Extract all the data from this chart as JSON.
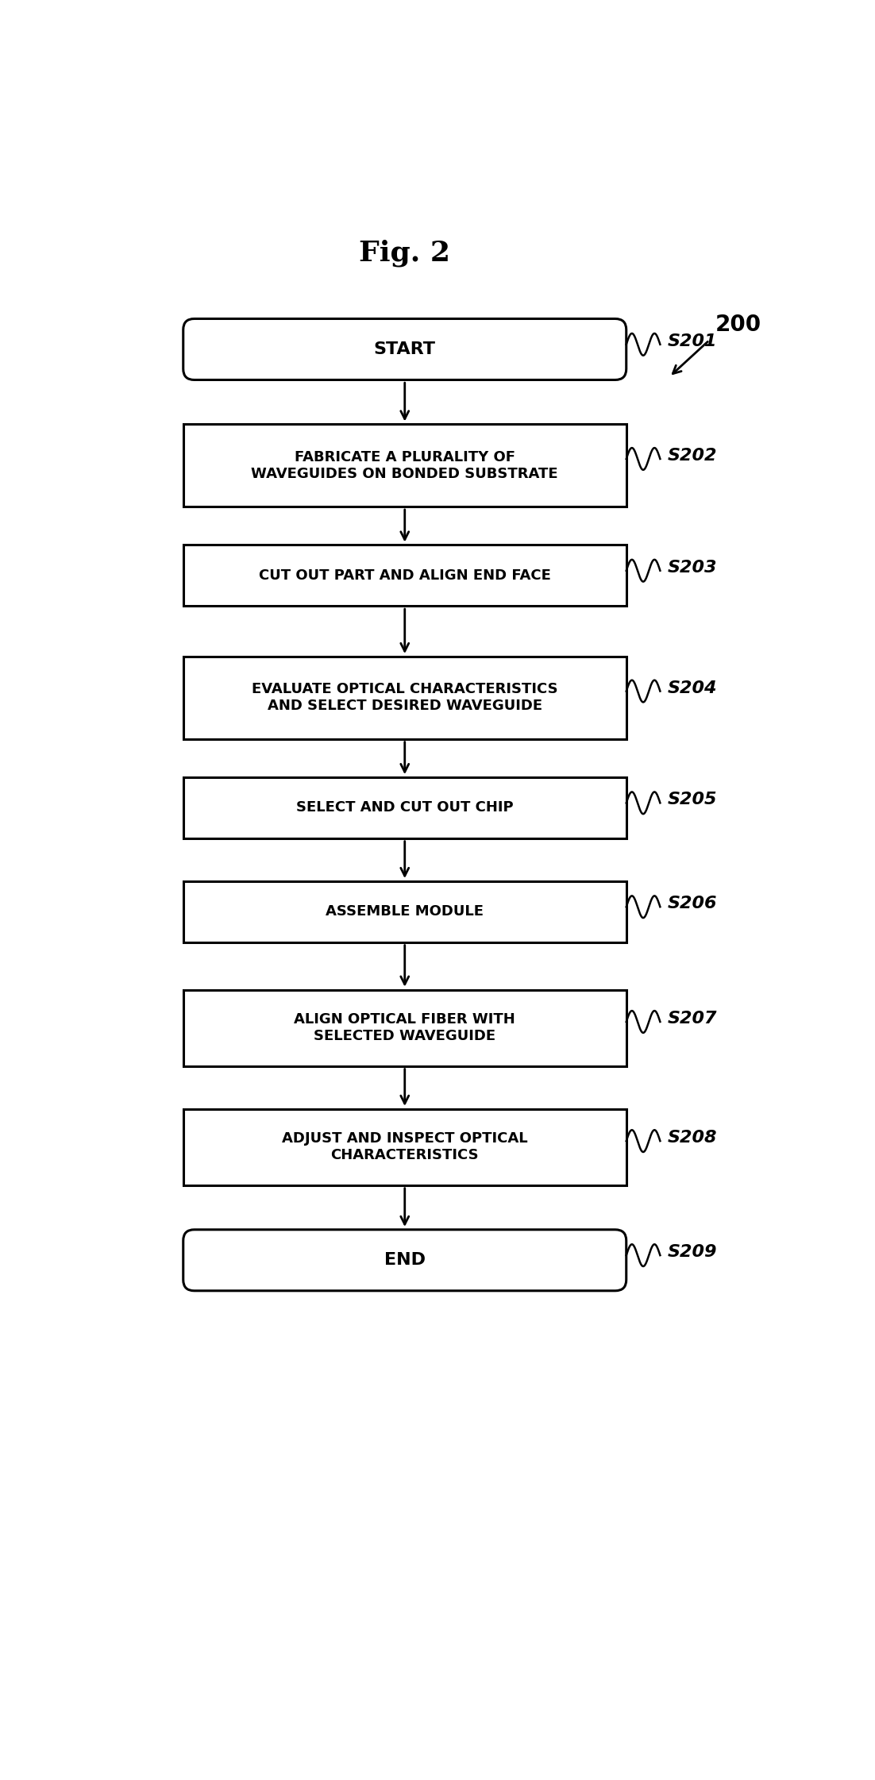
{
  "title": "Fig. 2",
  "figure_label": "200",
  "background_color": "#ffffff",
  "steps": [
    {
      "id": "S201",
      "label": "START",
      "shape": "rounded"
    },
    {
      "id": "S202",
      "label": "FABRICATE A PLURALITY OF\nWAVEGUIDES ON BONDED SUBSTRATE",
      "shape": "rect"
    },
    {
      "id": "S203",
      "label": "CUT OUT PART AND ALIGN END FACE",
      "shape": "rect"
    },
    {
      "id": "S204",
      "label": "EVALUATE OPTICAL CHARACTERISTICS\nAND SELECT DESIRED WAVEGUIDE",
      "shape": "rect"
    },
    {
      "id": "S205",
      "label": "SELECT AND CUT OUT CHIP",
      "shape": "rect"
    },
    {
      "id": "S206",
      "label": "ASSEMBLE MODULE",
      "shape": "rect"
    },
    {
      "id": "S207",
      "label": "ALIGN OPTICAL FIBER WITH\nSELECTED WAVEGUIDE",
      "shape": "rect"
    },
    {
      "id": "S208",
      "label": "ADJUST AND INSPECT OPTICAL\nCHARACTERISTICS",
      "shape": "rect"
    },
    {
      "id": "S209",
      "label": "END",
      "shape": "rounded"
    }
  ],
  "text_color": "#000000",
  "box_edge_color": "#000000",
  "arrow_color": "#000000",
  "background_color2": "#ffffff"
}
